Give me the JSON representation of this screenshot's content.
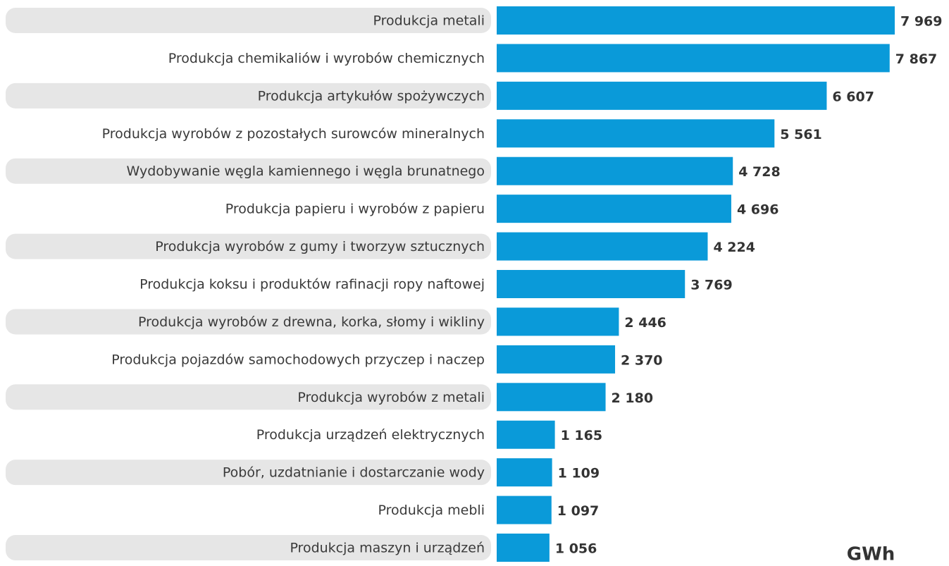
{
  "chart_data": {
    "type": "bar",
    "orientation": "horizontal",
    "categories": [
      "Produkcja metali",
      "Produkcja chemikaliów i wyrobów chemicznych",
      "Produkcja artykułów spożywczych",
      "Produkcja wyrobów z pozostałych surowców mineralnych",
      "Wydobywanie węgla kamiennego i węgla brunatnego",
      "Produkcja papieru i wyrobów z papieru",
      "Produkcja wyrobów z gumy i tworzyw sztucznych",
      "Produkcja koksu i produktów rafinacji ropy naftowej",
      "Produkcja wyrobów z drewna, korka, słomy i wikliny",
      "Produkcja pojazdów samochodowych przyczep i naczep",
      "Produkcja wyrobów z metali",
      "Produkcja urządzeń elektrycznych",
      "Pobór, uzdatnianie i dostarczanie wody",
      "Produkcja mebli",
      "Produkcja maszyn i urządzeń"
    ],
    "values": [
      7969,
      7867,
      6607,
      5561,
      4728,
      4696,
      4224,
      3769,
      2446,
      2370,
      2180,
      1165,
      1109,
      1097,
      1056
    ],
    "value_labels": [
      "7 969",
      "7 867",
      "6 607",
      "5 561",
      "4 728",
      "4 696",
      "4 224",
      "3 769",
      "2 446",
      "2 370",
      "2 180",
      "1 165",
      "1 109",
      "1 097",
      "1 056"
    ],
    "color": "#0a9ad9",
    "unit": "GWh"
  }
}
